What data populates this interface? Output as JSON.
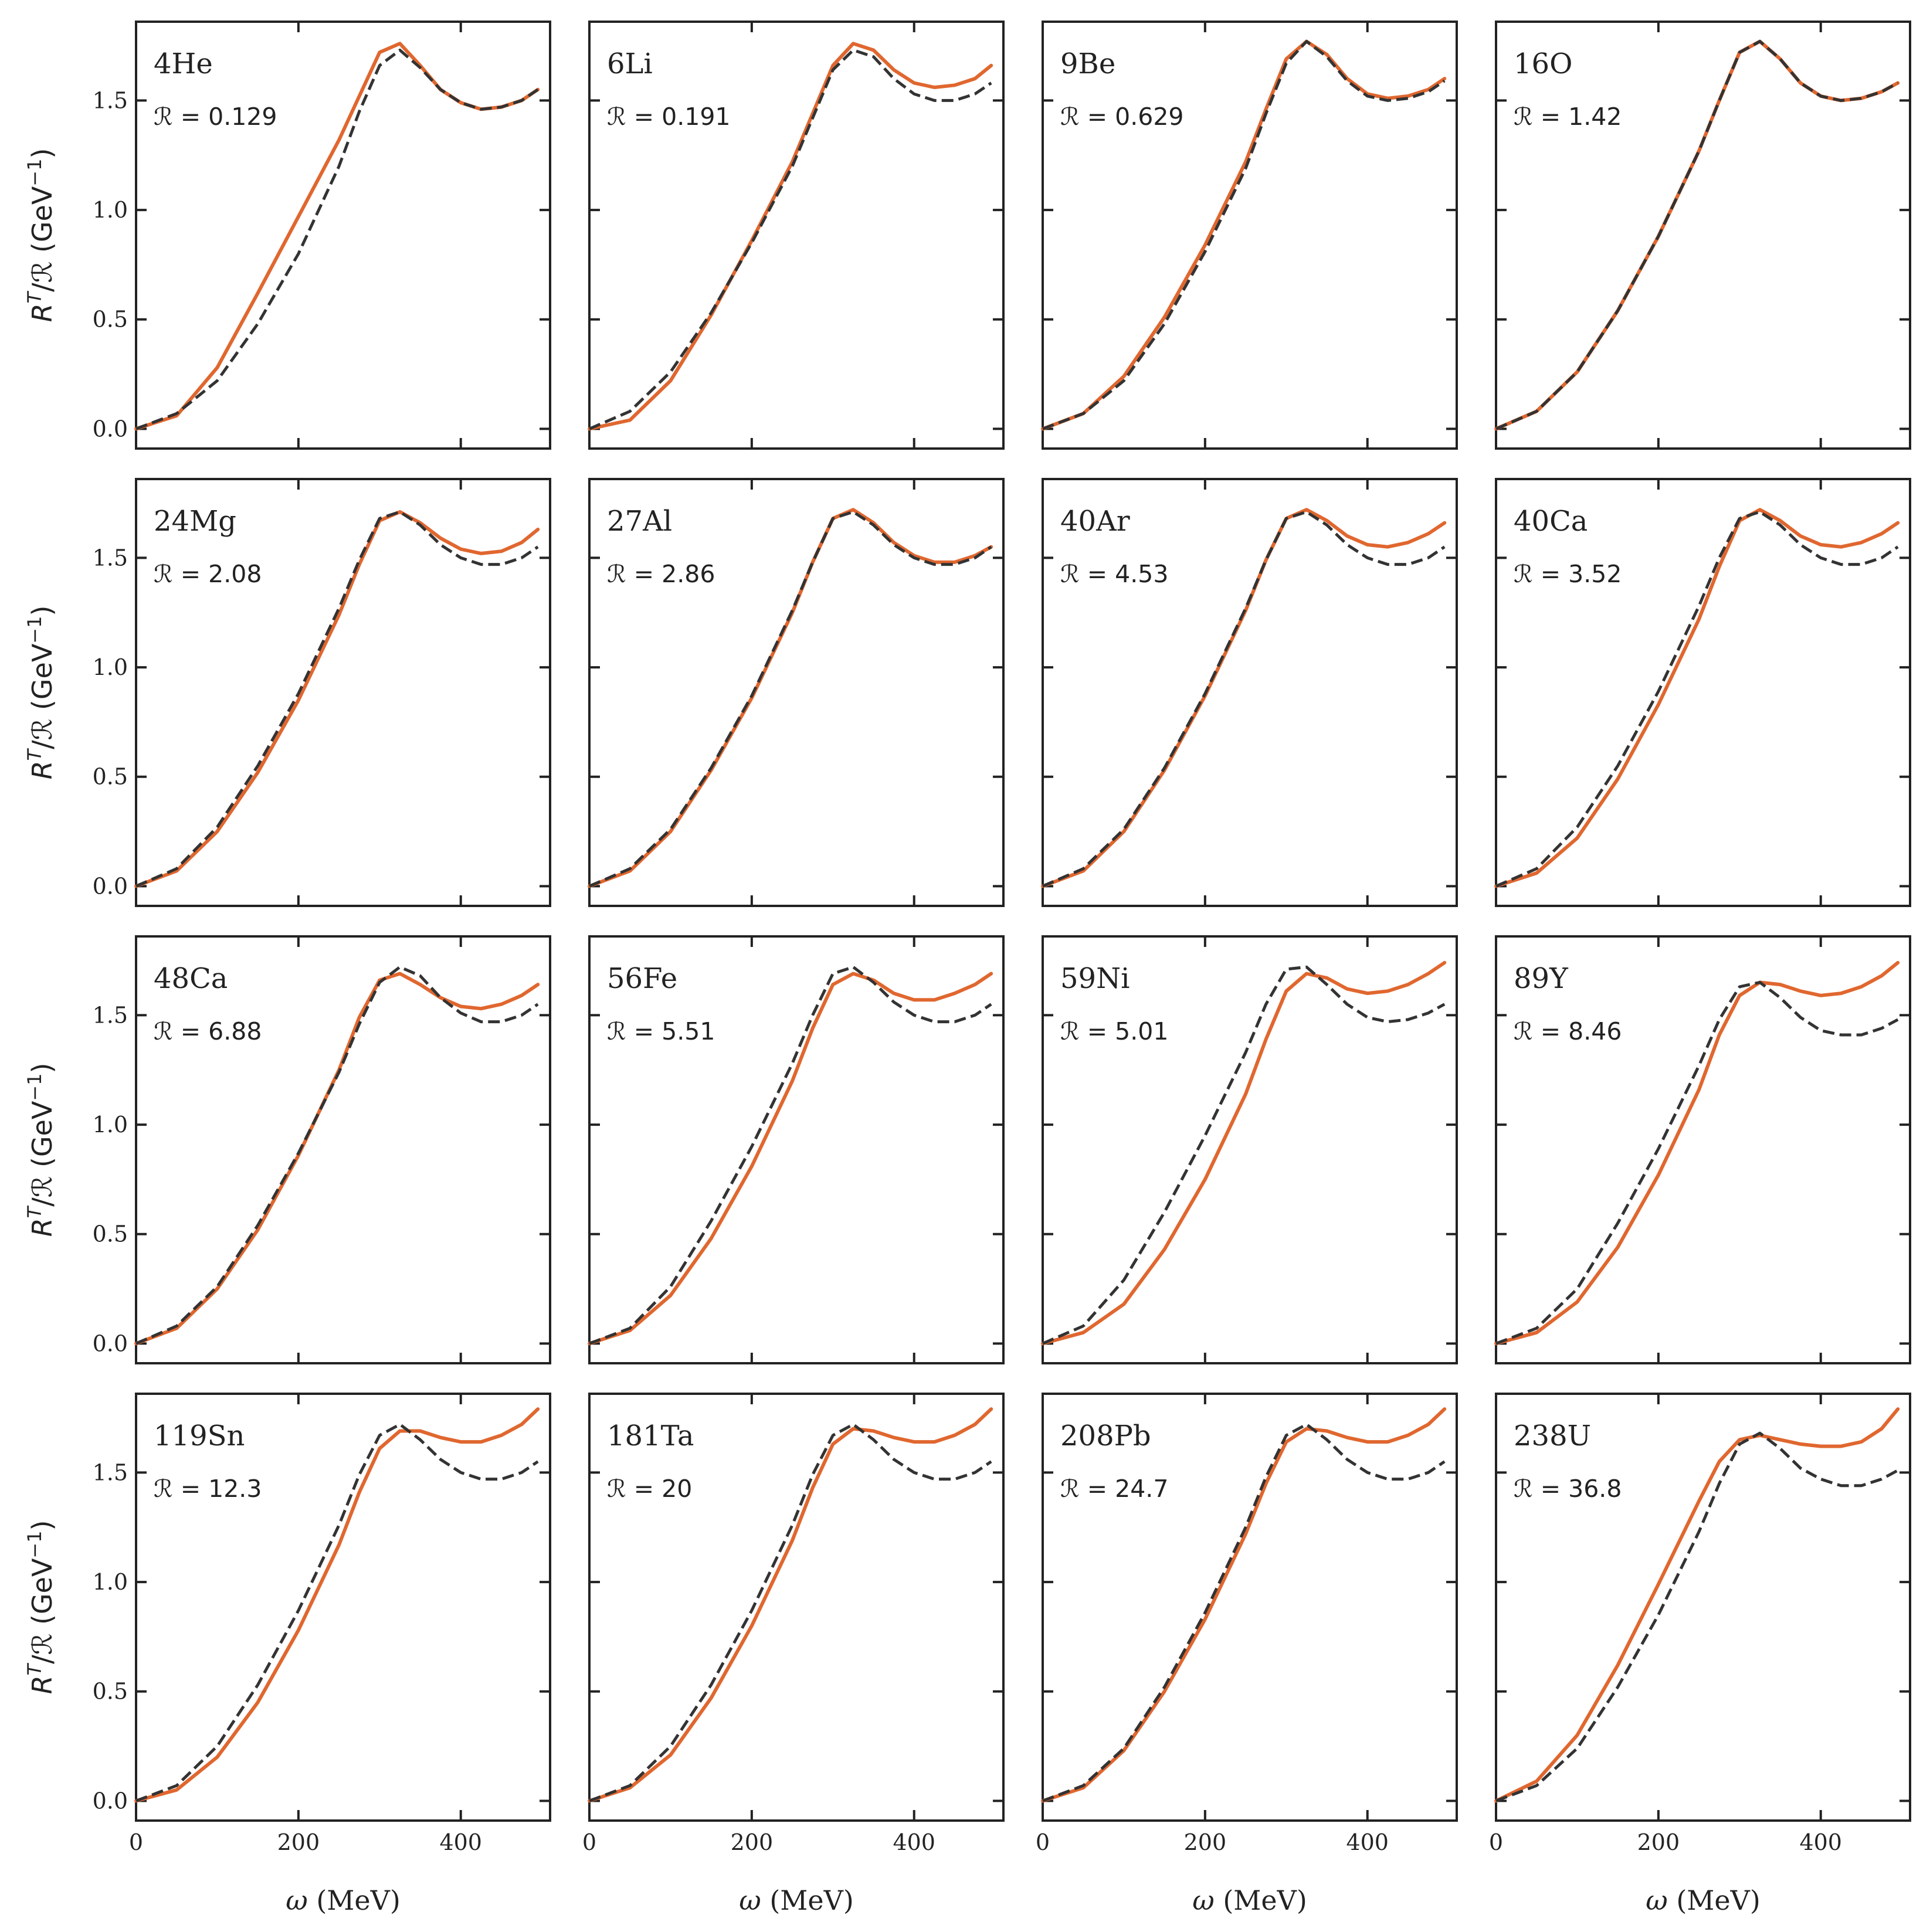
{
  "chart_data": {
    "type": "line",
    "layout": "4x4 grid of small multiples with shared axes",
    "xlabel": "ω (MeV)",
    "ylabel": "R^T/ℛ (GeV^-1)",
    "xlim": [
      0,
      510
    ],
    "ylim": [
      -0.09,
      1.86
    ],
    "xticks": [
      0,
      200,
      400
    ],
    "xtick_labels": [
      "0",
      "200",
      "400"
    ],
    "yticks": [
      0.0,
      0.5,
      1.0,
      1.5
    ],
    "ytick_labels": [
      "0.0",
      "0.5",
      "1.0",
      "1.5"
    ],
    "x": [
      0,
      50,
      100,
      150,
      200,
      250,
      275,
      300,
      325,
      350,
      375,
      400,
      425,
      450,
      475,
      495
    ],
    "colors": {
      "series_a": "#e0672f",
      "series_b": "#333333"
    },
    "series_styles": [
      {
        "name": "solid",
        "style": "solid"
      },
      {
        "name": "dashed",
        "style": "dashed"
      }
    ],
    "panels": [
      {
        "nucleus": "4He",
        "rlabel": "ℛ = 0.129",
        "solid": [
          0.0,
          0.06,
          0.28,
          0.62,
          0.97,
          1.32,
          1.52,
          1.72,
          1.76,
          1.66,
          1.55,
          1.49,
          1.46,
          1.47,
          1.5,
          1.55
        ],
        "dashed": [
          0.0,
          0.07,
          0.22,
          0.48,
          0.8,
          1.2,
          1.45,
          1.66,
          1.73,
          1.65,
          1.55,
          1.49,
          1.46,
          1.47,
          1.5,
          1.55
        ]
      },
      {
        "nucleus": "6Li",
        "rlabel": "ℛ = 0.191",
        "solid": [
          0.0,
          0.04,
          0.22,
          0.52,
          0.86,
          1.22,
          1.44,
          1.66,
          1.76,
          1.73,
          1.64,
          1.58,
          1.56,
          1.57,
          1.6,
          1.66
        ],
        "dashed": [
          0.0,
          0.08,
          0.26,
          0.53,
          0.85,
          1.2,
          1.42,
          1.64,
          1.73,
          1.7,
          1.6,
          1.53,
          1.5,
          1.5,
          1.53,
          1.58
        ]
      },
      {
        "nucleus": "9Be",
        "rlabel": "ℛ = 0.629",
        "solid": [
          0.0,
          0.07,
          0.24,
          0.51,
          0.84,
          1.22,
          1.46,
          1.69,
          1.77,
          1.71,
          1.6,
          1.53,
          1.51,
          1.52,
          1.55,
          1.6
        ],
        "dashed": [
          0.0,
          0.07,
          0.22,
          0.48,
          0.81,
          1.19,
          1.44,
          1.67,
          1.77,
          1.7,
          1.59,
          1.52,
          1.5,
          1.51,
          1.54,
          1.59
        ]
      },
      {
        "nucleus": "16O",
        "rlabel": "ℛ = 1.42",
        "solid": [
          0.0,
          0.08,
          0.26,
          0.54,
          0.88,
          1.27,
          1.5,
          1.72,
          1.77,
          1.69,
          1.58,
          1.52,
          1.5,
          1.51,
          1.54,
          1.58
        ],
        "dashed": [
          0.0,
          0.08,
          0.26,
          0.54,
          0.88,
          1.27,
          1.5,
          1.72,
          1.77,
          1.69,
          1.58,
          1.52,
          1.5,
          1.51,
          1.54,
          1.58
        ]
      },
      {
        "nucleus": "24Mg",
        "rlabel": "ℛ = 2.08",
        "solid": [
          0.0,
          0.07,
          0.25,
          0.52,
          0.85,
          1.24,
          1.47,
          1.67,
          1.71,
          1.66,
          1.59,
          1.54,
          1.52,
          1.53,
          1.57,
          1.63
        ],
        "dashed": [
          0.0,
          0.08,
          0.27,
          0.55,
          0.88,
          1.27,
          1.49,
          1.68,
          1.71,
          1.65,
          1.56,
          1.5,
          1.47,
          1.47,
          1.5,
          1.55
        ]
      },
      {
        "nucleus": "27Al",
        "rlabel": "ℛ = 2.86",
        "solid": [
          0.0,
          0.07,
          0.25,
          0.53,
          0.86,
          1.25,
          1.48,
          1.68,
          1.72,
          1.66,
          1.57,
          1.51,
          1.48,
          1.48,
          1.51,
          1.55
        ],
        "dashed": [
          0.0,
          0.08,
          0.26,
          0.54,
          0.87,
          1.26,
          1.48,
          1.68,
          1.71,
          1.65,
          1.56,
          1.5,
          1.47,
          1.47,
          1.5,
          1.55
        ]
      },
      {
        "nucleus": "40Ar",
        "rlabel": "ℛ = 4.53",
        "solid": [
          0.0,
          0.07,
          0.25,
          0.53,
          0.87,
          1.26,
          1.49,
          1.68,
          1.72,
          1.67,
          1.6,
          1.56,
          1.55,
          1.57,
          1.61,
          1.66
        ],
        "dashed": [
          0.0,
          0.08,
          0.26,
          0.54,
          0.88,
          1.27,
          1.49,
          1.68,
          1.71,
          1.65,
          1.56,
          1.5,
          1.47,
          1.47,
          1.5,
          1.55
        ]
      },
      {
        "nucleus": "40Ca",
        "rlabel": "ℛ = 3.52",
        "solid": [
          0.0,
          0.06,
          0.22,
          0.49,
          0.83,
          1.22,
          1.46,
          1.67,
          1.72,
          1.67,
          1.6,
          1.56,
          1.55,
          1.57,
          1.61,
          1.66
        ],
        "dashed": [
          0.0,
          0.08,
          0.27,
          0.55,
          0.89,
          1.28,
          1.5,
          1.68,
          1.71,
          1.65,
          1.56,
          1.5,
          1.47,
          1.47,
          1.5,
          1.55
        ]
      },
      {
        "nucleus": "48Ca",
        "rlabel": "ℛ = 6.88",
        "solid": [
          0.0,
          0.07,
          0.25,
          0.52,
          0.86,
          1.25,
          1.49,
          1.66,
          1.69,
          1.64,
          1.58,
          1.54,
          1.53,
          1.55,
          1.59,
          1.64
        ],
        "dashed": [
          0.0,
          0.08,
          0.26,
          0.54,
          0.87,
          1.24,
          1.46,
          1.65,
          1.72,
          1.68,
          1.58,
          1.51,
          1.47,
          1.47,
          1.5,
          1.55
        ]
      },
      {
        "nucleus": "56Fe",
        "rlabel": "ℛ = 5.51",
        "solid": [
          0.0,
          0.06,
          0.22,
          0.48,
          0.81,
          1.2,
          1.44,
          1.64,
          1.69,
          1.66,
          1.6,
          1.57,
          1.57,
          1.6,
          1.64,
          1.69
        ],
        "dashed": [
          0.0,
          0.07,
          0.26,
          0.56,
          0.9,
          1.28,
          1.5,
          1.69,
          1.72,
          1.65,
          1.56,
          1.5,
          1.47,
          1.47,
          1.5,
          1.55
        ]
      },
      {
        "nucleus": "59Ni",
        "rlabel": "ℛ = 5.01",
        "solid": [
          0.0,
          0.05,
          0.18,
          0.43,
          0.75,
          1.14,
          1.39,
          1.61,
          1.69,
          1.67,
          1.62,
          1.6,
          1.61,
          1.64,
          1.69,
          1.74
        ],
        "dashed": [
          0.0,
          0.08,
          0.29,
          0.6,
          0.95,
          1.33,
          1.55,
          1.71,
          1.72,
          1.64,
          1.55,
          1.49,
          1.47,
          1.48,
          1.51,
          1.55
        ]
      },
      {
        "nucleus": "89Y",
        "rlabel": "ℛ = 8.46",
        "solid": [
          0.0,
          0.05,
          0.19,
          0.44,
          0.77,
          1.16,
          1.41,
          1.59,
          1.65,
          1.64,
          1.61,
          1.59,
          1.6,
          1.63,
          1.68,
          1.74
        ],
        "dashed": [
          0.0,
          0.07,
          0.25,
          0.55,
          0.89,
          1.27,
          1.48,
          1.63,
          1.65,
          1.58,
          1.49,
          1.43,
          1.41,
          1.41,
          1.44,
          1.48
        ]
      },
      {
        "nucleus": "119Sn",
        "rlabel": "ℛ = 12.3",
        "solid": [
          0.0,
          0.05,
          0.2,
          0.45,
          0.78,
          1.17,
          1.41,
          1.61,
          1.69,
          1.69,
          1.66,
          1.64,
          1.64,
          1.67,
          1.72,
          1.79
        ],
        "dashed": [
          0.0,
          0.07,
          0.25,
          0.53,
          0.87,
          1.26,
          1.49,
          1.67,
          1.72,
          1.65,
          1.56,
          1.5,
          1.47,
          1.47,
          1.5,
          1.55
        ]
      },
      {
        "nucleus": "181Ta",
        "rlabel": "ℛ = 20",
        "solid": [
          0.0,
          0.06,
          0.21,
          0.47,
          0.8,
          1.19,
          1.43,
          1.63,
          1.7,
          1.69,
          1.66,
          1.64,
          1.64,
          1.67,
          1.72,
          1.79
        ],
        "dashed": [
          0.0,
          0.07,
          0.25,
          0.53,
          0.87,
          1.26,
          1.49,
          1.67,
          1.72,
          1.65,
          1.56,
          1.5,
          1.47,
          1.47,
          1.5,
          1.55
        ]
      },
      {
        "nucleus": "208Pb",
        "rlabel": "ℛ = 24.7",
        "solid": [
          0.0,
          0.06,
          0.23,
          0.5,
          0.83,
          1.22,
          1.45,
          1.64,
          1.7,
          1.69,
          1.66,
          1.64,
          1.64,
          1.67,
          1.72,
          1.79
        ],
        "dashed": [
          0.0,
          0.07,
          0.24,
          0.52,
          0.86,
          1.25,
          1.48,
          1.67,
          1.72,
          1.65,
          1.56,
          1.5,
          1.47,
          1.47,
          1.5,
          1.55
        ]
      },
      {
        "nucleus": "238U",
        "rlabel": "ℛ = 36.8",
        "solid": [
          0.0,
          0.09,
          0.3,
          0.62,
          0.99,
          1.37,
          1.55,
          1.65,
          1.67,
          1.65,
          1.63,
          1.62,
          1.62,
          1.64,
          1.7,
          1.79
        ],
        "dashed": [
          0.0,
          0.07,
          0.24,
          0.52,
          0.85,
          1.23,
          1.45,
          1.63,
          1.68,
          1.61,
          1.52,
          1.47,
          1.44,
          1.44,
          1.47,
          1.51
        ]
      }
    ]
  }
}
